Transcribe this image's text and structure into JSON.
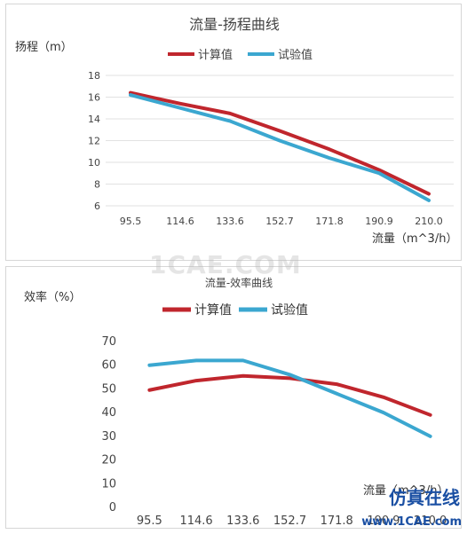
{
  "chart_data": [
    {
      "type": "line",
      "title": "流量-扬程曲线",
      "ylabel": "扬程（m）",
      "xlabel": "流量（m^3/h）",
      "categories": [
        "95.5",
        "114.6",
        "133.6",
        "152.7",
        "171.8",
        "190.9",
        "210.0"
      ],
      "ylim": [
        6,
        18
      ],
      "yticks": [
        6,
        8,
        10,
        12,
        14,
        16,
        18
      ],
      "grid": true,
      "legend_position": "top",
      "series": [
        {
          "name": "计算值",
          "color": "#c0262d",
          "values": [
            16.4,
            15.4,
            14.5,
            12.9,
            11.2,
            9.3,
            7.1
          ]
        },
        {
          "name": "试验值",
          "color": "#3ba7d0",
          "values": [
            16.2,
            15.0,
            13.8,
            12.0,
            10.4,
            9.0,
            6.5
          ]
        }
      ]
    },
    {
      "type": "line",
      "title": "流量-效率曲线",
      "ylabel": "效率（%）",
      "xlabel": "流量（m^3/h）",
      "categories": [
        "95.5",
        "114.6",
        "133.6",
        "152.7",
        "171.8",
        "190.9",
        "210.0"
      ],
      "ylim": [
        0,
        70
      ],
      "yticks": [
        0,
        10,
        20,
        30,
        40,
        50,
        60,
        70
      ],
      "grid": false,
      "legend_position": "top",
      "series": [
        {
          "name": "计算值",
          "color": "#c0262d",
          "values": [
            49.5,
            53.5,
            55.5,
            54.5,
            52.0,
            46.5,
            39.0
          ]
        },
        {
          "name": "试验值",
          "color": "#3ba7d0",
          "values": [
            60.0,
            62.0,
            62.0,
            56.0,
            48.0,
            40.0,
            30.0
          ]
        }
      ]
    }
  ],
  "watermarks": {
    "center": "1CAE.COM",
    "brand": "仿真在线",
    "site": "www.1CAE.com"
  }
}
